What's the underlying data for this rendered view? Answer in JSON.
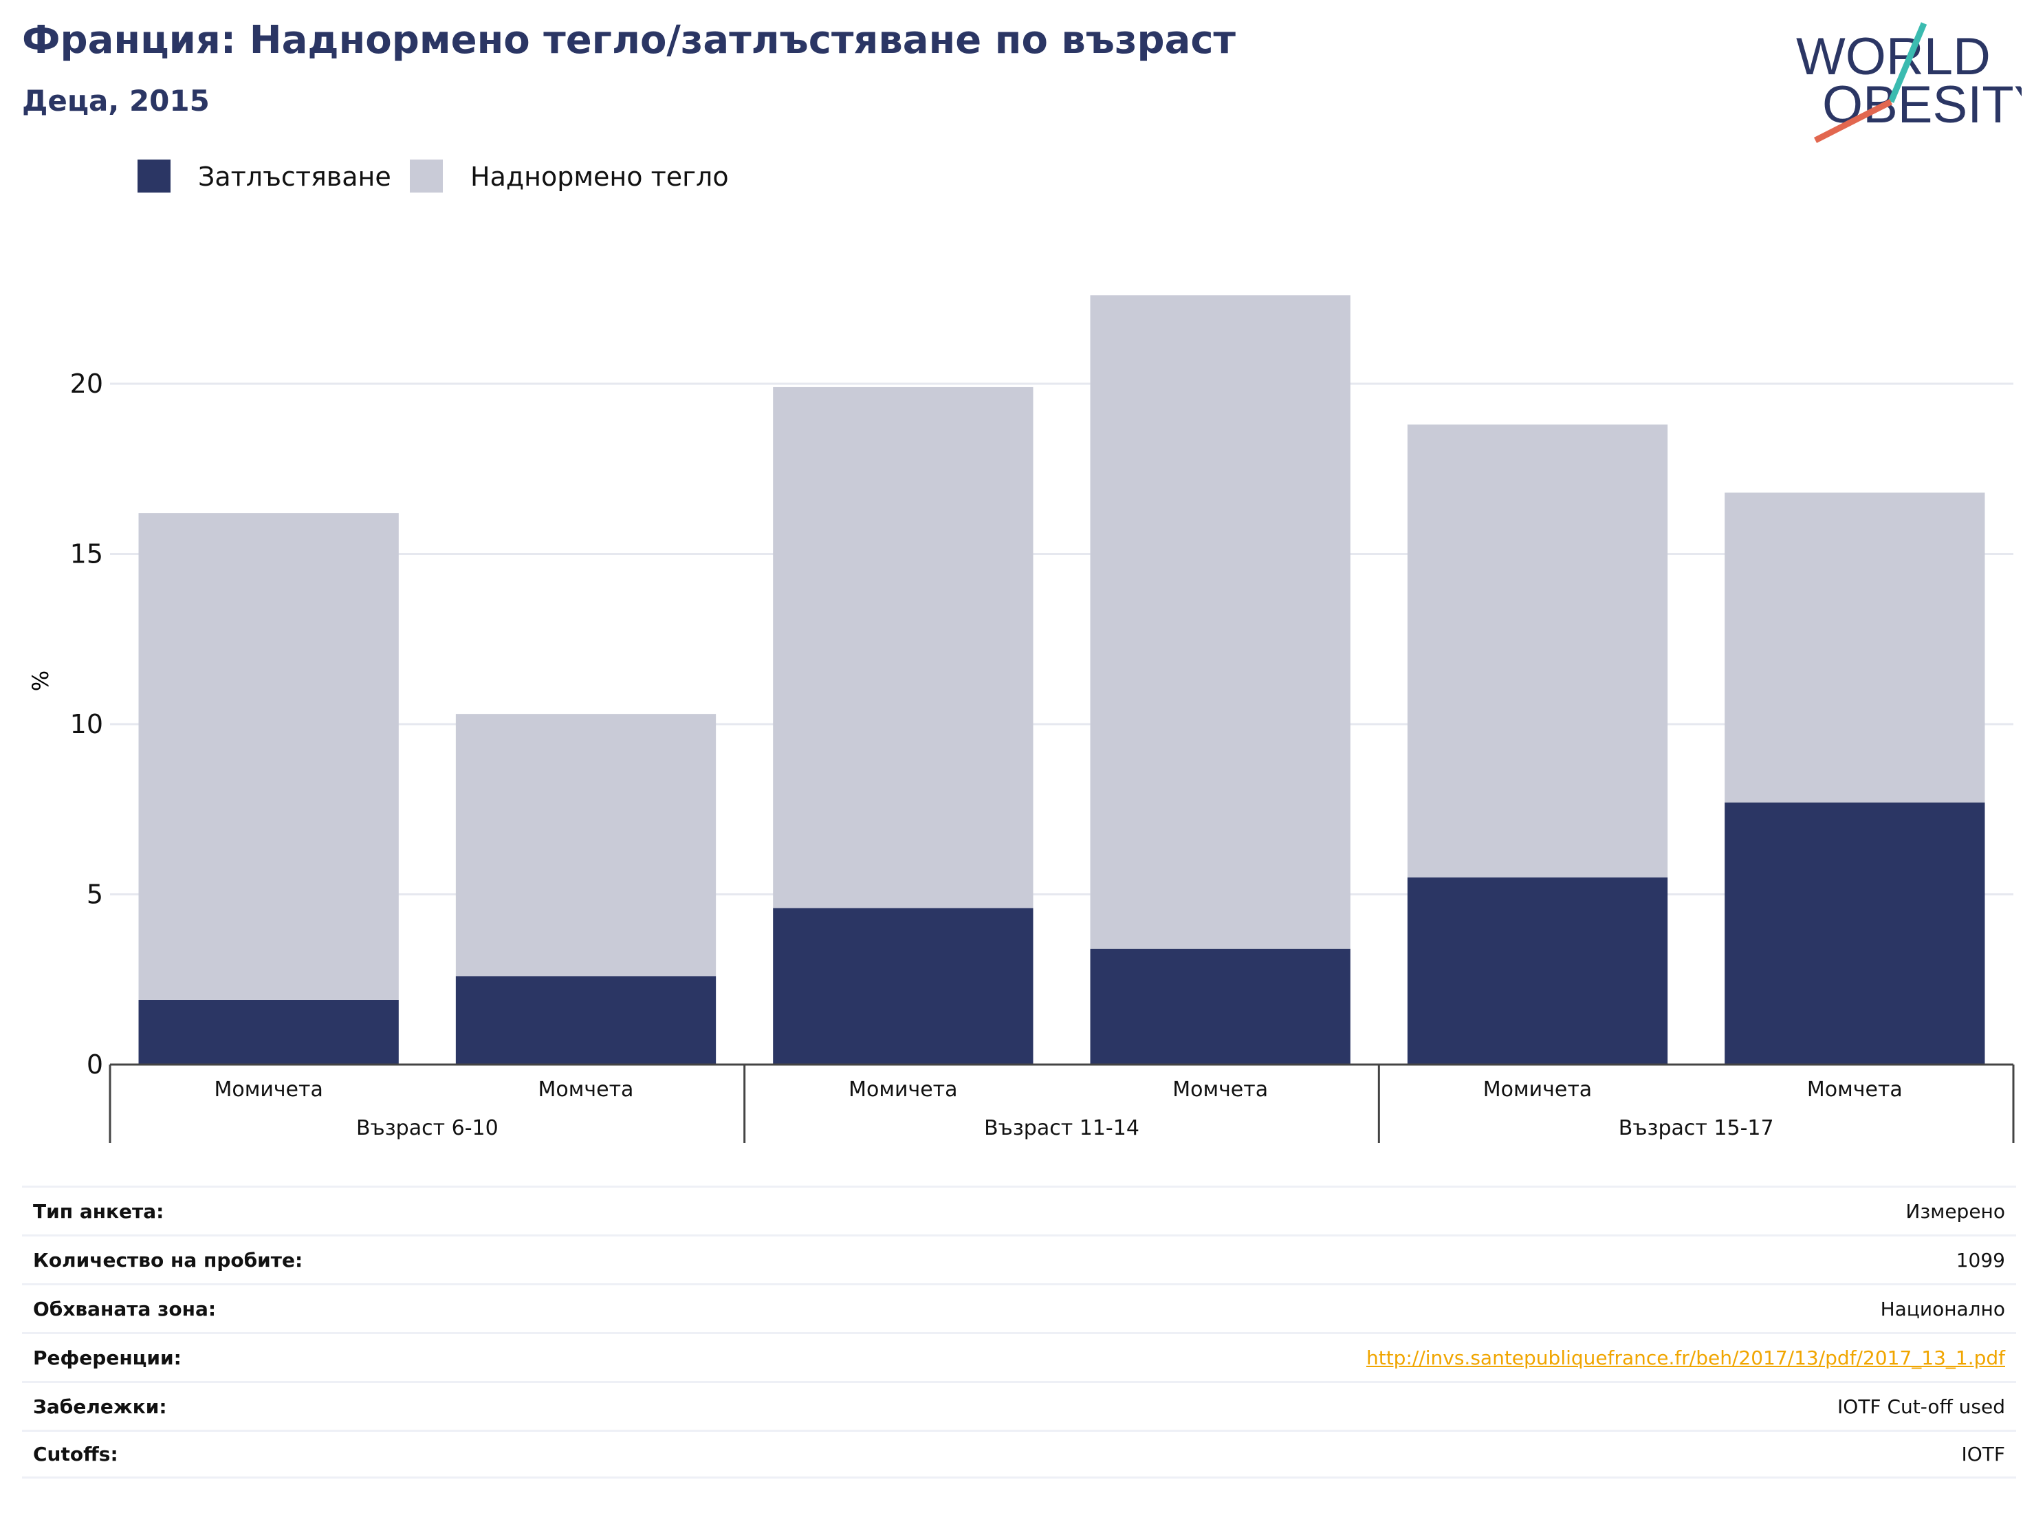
{
  "header": {
    "title": "Франция: Наднормено тегло/затлъстяване по възраст",
    "subtitle": "Деца, 2015"
  },
  "logo": {
    "line1": "WORLD",
    "line2": "OBESITY"
  },
  "colors": {
    "obesity": "#2b3664",
    "overweight": "#c9cbd7",
    "accent_teal": "#3bbbb0",
    "accent_coral": "#e2674f",
    "link": "#f0a500",
    "grid": "#e6e8ef"
  },
  "chart_data": {
    "type": "bar",
    "stacked": true,
    "ylabel": "%",
    "ylim": [
      0,
      24
    ],
    "yticks": [
      0,
      5,
      10,
      15,
      20
    ],
    "grid": true,
    "legend_position": "top-left",
    "categories": [
      "Момичета",
      "Момчета",
      "Момичета",
      "Момчета",
      "Момичета",
      "Момчета"
    ],
    "groups": [
      {
        "label": "Възраст 6-10",
        "size": 2
      },
      {
        "label": "Възраст 11-14",
        "size": 2
      },
      {
        "label": "Възраст 15-17",
        "size": 2
      }
    ],
    "series": [
      {
        "name": "Затлъстяване",
        "color": "#2b3664",
        "values": [
          1.9,
          2.6,
          4.6,
          3.4,
          5.5,
          7.7
        ]
      },
      {
        "name": "Наднормено тегло",
        "color": "#c9cbd7",
        "values": [
          14.3,
          7.7,
          15.3,
          19.2,
          13.3,
          9.1
        ]
      }
    ]
  },
  "meta": [
    {
      "key": "Тип анкета:",
      "value": "Измерено"
    },
    {
      "key": "Количество на пробите:",
      "value": "1099"
    },
    {
      "key": "Обхваната зона:",
      "value": "Национално"
    },
    {
      "key": "Референции:",
      "value": "http://invs.santepubliquefrance.fr/beh/2017/13/pdf/2017_13_1.pdf",
      "link": true
    },
    {
      "key": "Забележки:",
      "value": "IOTF Cut-off used"
    },
    {
      "key": "Cutoffs:",
      "value": "IOTF"
    }
  ]
}
